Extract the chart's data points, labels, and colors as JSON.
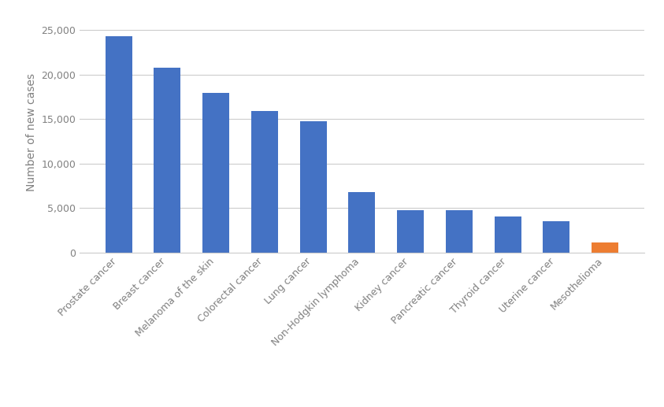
{
  "categories": [
    "Prostate cancer",
    "Breast cancer",
    "Melanoma of the skin",
    "Colorectal cancer",
    "Lung cancer",
    "Non-Hodgkin lymphoma",
    "Kidney cancer",
    "Pancreatic cancer",
    "Thyroid cancer",
    "Uterine cancer",
    "Mesothelioma"
  ],
  "values": [
    24300,
    20800,
    17900,
    15900,
    14700,
    6800,
    4750,
    4700,
    4050,
    3500,
    1100
  ],
  "bar_colors": [
    "#4472C4",
    "#4472C4",
    "#4472C4",
    "#4472C4",
    "#4472C4",
    "#4472C4",
    "#4472C4",
    "#4472C4",
    "#4472C4",
    "#4472C4",
    "#ED7D31"
  ],
  "ylabel": "Number of new cases",
  "ylim": [
    0,
    27000
  ],
  "yticks": [
    0,
    5000,
    10000,
    15000,
    20000,
    25000
  ],
  "background_color": "#FFFFFF",
  "grid_color": "#CCCCCC",
  "bar_width": 0.55,
  "ylabel_fontsize": 10,
  "tick_fontsize": 9,
  "label_color": "#808080"
}
